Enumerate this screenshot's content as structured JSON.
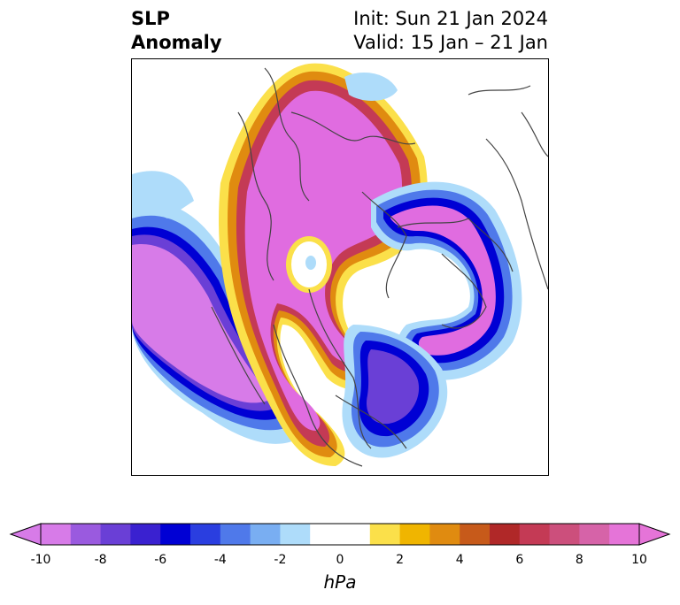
{
  "header": {
    "title_line1": "SLP",
    "title_line2": "Anomaly",
    "init_line": "Init: Sun 21 Jan 2024",
    "valid_line": "Valid: 15 Jan – 21 Jan"
  },
  "colorbar": {
    "units": "hPa",
    "ticks": [
      "-10",
      "-8",
      "-6",
      "-4",
      "-2",
      "0",
      "2",
      "4",
      "6",
      "8",
      "10"
    ],
    "colors": [
      "#d77be8",
      "#9a5adf",
      "#6a3fd6",
      "#3a21d0",
      "#0000d4",
      "#2a3ee0",
      "#4f79ea",
      "#79aef2",
      "#aedcfa",
      "#ffffff",
      "#ffffff",
      "#fbe04a",
      "#f0b500",
      "#e08b10",
      "#c75a1a",
      "#b02828",
      "#c43a55",
      "#cc4f7c",
      "#d663a8",
      "#e574d8"
    ],
    "min_color": "#d77be8",
    "max_color": "#e574d8"
  },
  "map": {
    "projection": "north-polar-stereographic",
    "field": "sea level pressure anomaly",
    "palette": {
      "strong_positive": "#e06ce0",
      "positive_red": "#c43a55",
      "positive_orange": "#e08b10",
      "positive_yellow": "#fbe04a",
      "negative_light": "#aedcfa",
      "negative_mid": "#4f79ea",
      "negative_deep": "#0000d4",
      "strong_negative": "#d77be8",
      "coastline": "#444444"
    }
  }
}
